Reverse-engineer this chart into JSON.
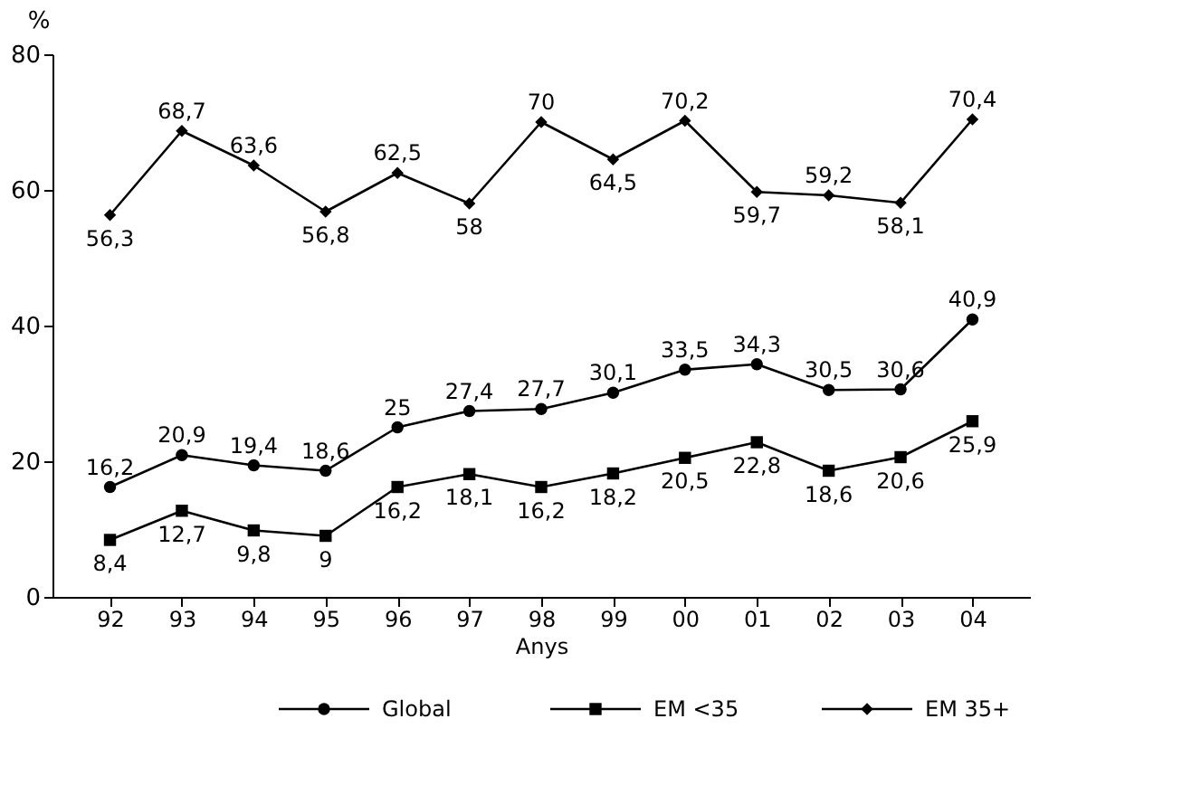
{
  "chart_data": {
    "type": "line",
    "ylabel": "%",
    "xlabel": "Anys",
    "categories": [
      "92",
      "93",
      "94",
      "95",
      "96",
      "97",
      "98",
      "99",
      "00",
      "01",
      "02",
      "03",
      "04"
    ],
    "ylim": [
      0,
      80
    ],
    "yticks": [
      0,
      20,
      40,
      60,
      80
    ],
    "grid": false,
    "legend": "bottom",
    "line_style": "solid",
    "series": [
      {
        "name": "Global",
        "color": "#000000",
        "marker": "circle",
        "values": [
          16.2,
          20.9,
          19.4,
          18.6,
          25,
          27.4,
          27.7,
          30.1,
          33.5,
          34.3,
          30.5,
          30.6,
          40.9
        ],
        "value_labels": [
          "16,2",
          "20,9",
          "19,4",
          "18,6",
          "25",
          "27,4",
          "27,7",
          "30,1",
          "33,5",
          "34,3",
          "30,5",
          "30,6",
          "40,9"
        ]
      },
      {
        "name": "EM <35",
        "color": "#000000",
        "marker": "square",
        "values": [
          8.4,
          12.7,
          9.8,
          9,
          16.2,
          18.1,
          16.2,
          18.2,
          20.5,
          22.8,
          18.6,
          20.6,
          25.9
        ],
        "value_labels": [
          "8,4",
          "12,7",
          "9,8",
          "9",
          "16,2",
          "18,1",
          "16,2",
          "18,2",
          "20,5",
          "22,8",
          "18,6",
          "20,6",
          "25,9"
        ]
      },
      {
        "name": "EM 35+",
        "color": "#000000",
        "marker": "diamond",
        "values": [
          56.3,
          68.7,
          63.6,
          56.8,
          62.5,
          58,
          70,
          64.5,
          70.2,
          59.7,
          59.2,
          58.1,
          70.4
        ],
        "value_labels": [
          "56,3",
          "68,7",
          "63,6",
          "56,8",
          "62,5",
          "58",
          "70",
          "64,5",
          "70,2",
          "59,7",
          "59,2",
          "58,1",
          "70,4"
        ]
      }
    ]
  }
}
